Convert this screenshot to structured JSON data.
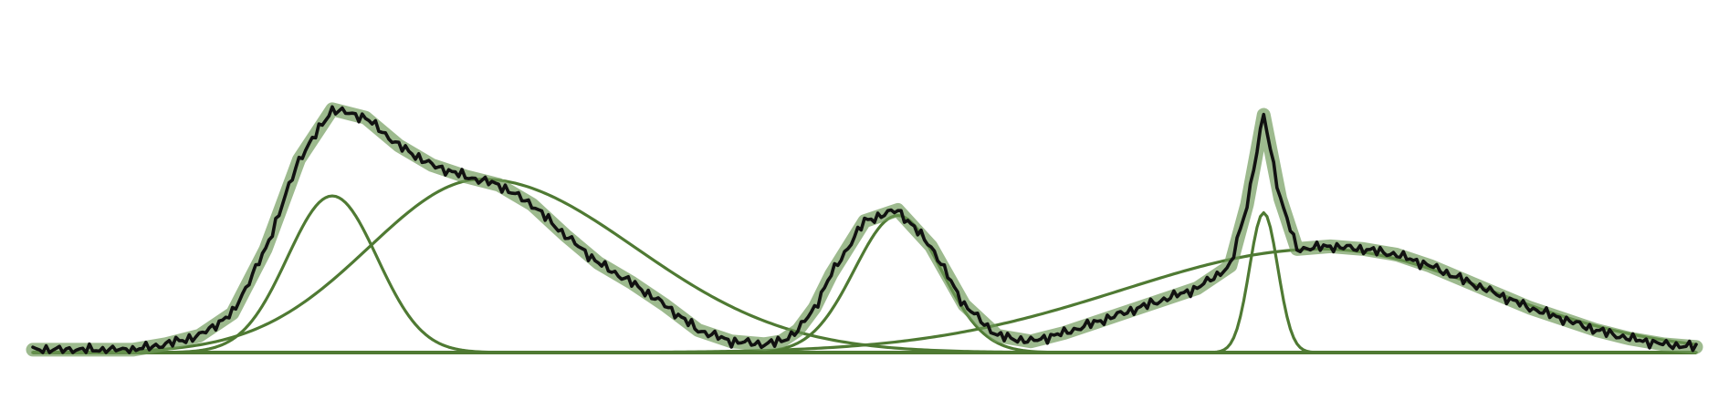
{
  "chart_data": {
    "type": "line",
    "xlim": [
      0,
      100
    ],
    "ylim": [
      0,
      1
    ],
    "grid": false,
    "legend": "none",
    "baseline": 0,
    "colors": {
      "component": "#4f7a33",
      "envelope": "#6f9a58",
      "signal": "#111111",
      "baseline": "#4f7a33"
    },
    "components": [
      {
        "amplitude": 0.56,
        "center": 18,
        "sigma": 2.7
      },
      {
        "amplitude": 0.62,
        "center": 27,
        "width_left": 6.8,
        "width_right": 9.2
      },
      {
        "amplitude": 0.49,
        "center": 52,
        "sigma": 2.6
      },
      {
        "amplitude": 0.5,
        "center": 74,
        "sigma": 0.85
      },
      {
        "amplitude": 0.37,
        "center": 77.5,
        "width_left": 12.0,
        "width_right": 10.0
      }
    ],
    "envelope": {
      "x": [
        0,
        2,
        4,
        6,
        8,
        10,
        12,
        14,
        16,
        18,
        20,
        22,
        24,
        26,
        28,
        30,
        32,
        34,
        36,
        38,
        40,
        42,
        44,
        45,
        46,
        47,
        48,
        50,
        52,
        54,
        56,
        58,
        60,
        62,
        64,
        66,
        68,
        70,
        72,
        73,
        74,
        75,
        76,
        78,
        80,
        82,
        84,
        86,
        88,
        90,
        92,
        94,
        96,
        98,
        100
      ],
      "y": [
        0.01,
        0.01,
        0.01,
        0.01,
        0.03,
        0.06,
        0.14,
        0.37,
        0.69,
        0.87,
        0.84,
        0.74,
        0.67,
        0.63,
        0.6,
        0.53,
        0.42,
        0.32,
        0.25,
        0.17,
        0.08,
        0.04,
        0.03,
        0.04,
        0.08,
        0.16,
        0.28,
        0.47,
        0.51,
        0.38,
        0.17,
        0.06,
        0.04,
        0.07,
        0.11,
        0.15,
        0.19,
        0.23,
        0.31,
        0.53,
        0.85,
        0.55,
        0.37,
        0.38,
        0.37,
        0.35,
        0.31,
        0.26,
        0.21,
        0.16,
        0.12,
        0.08,
        0.05,
        0.03,
        0.02
      ]
    }
  }
}
